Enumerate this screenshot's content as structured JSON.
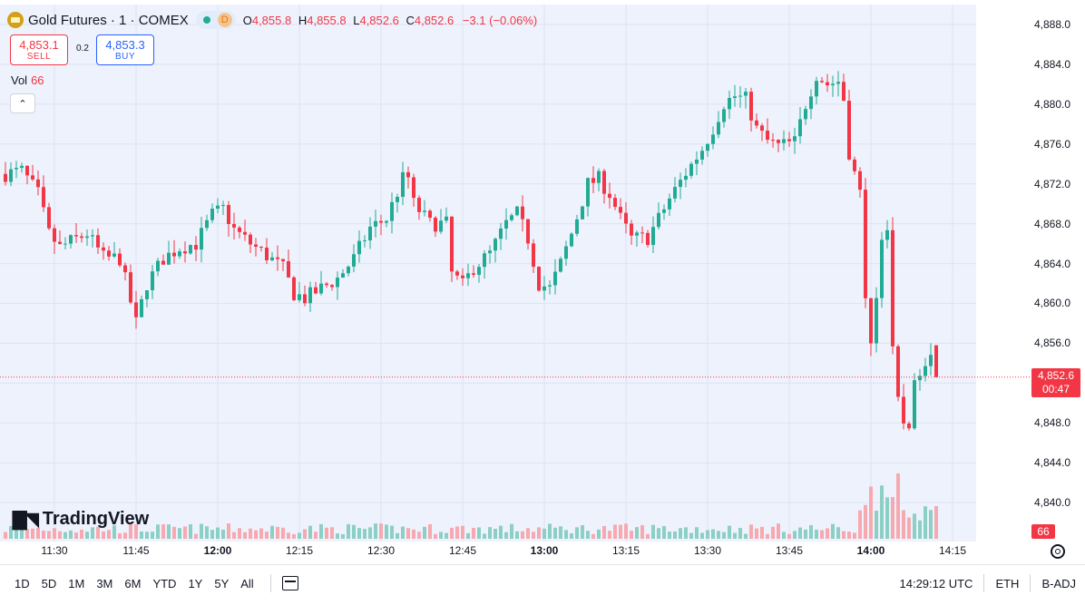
{
  "header": {
    "title": "Gold Futures · 1 · COMEX",
    "session_badge": "D",
    "ohlc": {
      "o_label": "O",
      "o": "4,855.8",
      "h_label": "H",
      "h": "4,855.8",
      "l_label": "L",
      "l": "4,852.6",
      "c_label": "C",
      "c": "4,852.6",
      "change": "−3.1 (−0.06%)"
    }
  },
  "trade": {
    "sell_price": "4,853.1",
    "sell_label": "SELL",
    "spread": "0.2",
    "buy_price": "4,853.3",
    "buy_label": "BUY"
  },
  "volume_legend": {
    "label": "Vol",
    "value": "66"
  },
  "watermark": "TradingView",
  "price_tag": {
    "price": "4,852.6",
    "countdown": "00:47"
  },
  "volume_tag": "66",
  "colors": {
    "up": "#22ab94",
    "down": "#f23645",
    "up_vol": "#8ccfc4",
    "down_vol": "#f7a9b0",
    "plot_bg": "#eef2fd"
  },
  "bottom_bar": {
    "ranges": [
      "1D",
      "5D",
      "1M",
      "3M",
      "6M",
      "YTD",
      "1Y",
      "5Y",
      "All"
    ],
    "clock": "14:29:12 UTC",
    "session": "ETH",
    "adjust": "B-ADJ"
  },
  "chart_data": {
    "type": "candlestick",
    "instrument": "Gold Futures · 1 · COMEX",
    "y_ticks": [
      "4,888.0",
      "4,884.0",
      "4,880.0",
      "4,876.0",
      "4,872.0",
      "4,868.0",
      "4,864.0",
      "4,860.0",
      "4,856.0",
      "4,848.0",
      "4,844.0",
      "4,840.0"
    ],
    "y_tick_values": [
      4888,
      4884,
      4880,
      4876,
      4872,
      4868,
      4864,
      4860,
      4856,
      4848,
      4844,
      4840
    ],
    "ylim": [
      4836.1,
      4890.0
    ],
    "x_ticks": [
      {
        "label": "11:30",
        "minute": 690,
        "bold": false
      },
      {
        "label": "11:45",
        "minute": 705,
        "bold": false
      },
      {
        "label": "12:00",
        "minute": 720,
        "bold": true
      },
      {
        "label": "12:15",
        "minute": 735,
        "bold": false
      },
      {
        "label": "12:30",
        "minute": 750,
        "bold": false
      },
      {
        "label": "12:45",
        "minute": 765,
        "bold": false
      },
      {
        "label": "13:00",
        "minute": 780,
        "bold": true
      },
      {
        "label": "13:15",
        "minute": 795,
        "bold": false
      },
      {
        "label": "13:30",
        "minute": 810,
        "bold": false
      },
      {
        "label": "13:45",
        "minute": 825,
        "bold": false
      },
      {
        "label": "14:00",
        "minute": 840,
        "bold": true
      },
      {
        "label": "14:15",
        "minute": 855,
        "bold": false
      }
    ],
    "last_price": 4852.6,
    "grid": true,
    "series": [
      {
        "name": "price",
        "key_points": [
          [
            681,
            4873
          ],
          [
            684,
            4873.3
          ],
          [
            687,
            4871
          ],
          [
            689,
            4867
          ],
          [
            691,
            4865.6
          ],
          [
            693,
            4866.2
          ],
          [
            696,
            4867
          ],
          [
            699,
            4864.6
          ],
          [
            702,
            4864.5
          ],
          [
            705,
            4858
          ],
          [
            707,
            4862
          ],
          [
            710,
            4864.5
          ],
          [
            713,
            4865.6
          ],
          [
            716,
            4866
          ],
          [
            719,
            4868.9
          ],
          [
            721,
            4869.5
          ],
          [
            723,
            4867.4
          ],
          [
            726,
            4866
          ],
          [
            729,
            4864.8
          ],
          [
            732,
            4863.5
          ],
          [
            734,
            4861
          ],
          [
            736,
            4860.5
          ],
          [
            739,
            4861.5
          ],
          [
            742,
            4862.5
          ],
          [
            745,
            4864.5
          ],
          [
            748,
            4867.6
          ],
          [
            751,
            4868.5
          ],
          [
            754,
            4872.5
          ],
          [
            755,
            4872.6
          ],
          [
            756,
            4870
          ],
          [
            759,
            4868
          ],
          [
            762,
            4868
          ],
          [
            763,
            4863
          ],
          [
            765,
            4861.8
          ],
          [
            767,
            4863.6
          ],
          [
            770,
            4865
          ],
          [
            773,
            4868
          ],
          [
            775,
            4869
          ],
          [
            777,
            4866.5
          ],
          [
            779,
            4862
          ],
          [
            781,
            4861.5
          ],
          [
            783,
            4864
          ],
          [
            785,
            4867
          ],
          [
            788,
            4872
          ],
          [
            790,
            4872.5
          ],
          [
            792,
            4871
          ],
          [
            794,
            4868.5
          ],
          [
            796,
            4866.5
          ],
          [
            799,
            4866.6
          ],
          [
            801,
            4868.5
          ],
          [
            803,
            4870.5
          ],
          [
            806,
            4873.1
          ],
          [
            809,
            4875.5
          ],
          [
            811,
            4877.6
          ],
          [
            813,
            4880.1
          ],
          [
            815,
            4880.8
          ],
          [
            817,
            4880.5
          ],
          [
            819,
            4877.5
          ],
          [
            821,
            4876.3
          ],
          [
            823,
            4875.8
          ],
          [
            826,
            4876.2
          ],
          [
            828,
            4880
          ],
          [
            830,
            4883
          ],
          [
            832,
            4882
          ],
          [
            834,
            4882.3
          ],
          [
            835,
            4880.5
          ],
          [
            836,
            4875.2
          ],
          [
            837,
            4873
          ],
          [
            838,
            4871
          ],
          [
            839,
            4860
          ],
          [
            840,
            4856.5
          ],
          [
            841,
            4860.5
          ],
          [
            842,
            4867
          ],
          [
            843,
            4867.5
          ],
          [
            844,
            4855
          ],
          [
            845,
            4850
          ],
          [
            846,
            4848
          ],
          [
            847,
            4848.1
          ],
          [
            848,
            4851.5
          ],
          [
            849,
            4853.5
          ],
          [
            850,
            4854.4
          ],
          [
            851,
            4855.6
          ],
          [
            852,
            4852.6
          ]
        ]
      }
    ],
    "volume_series": {
      "name": "Vol",
      "note": "per-bar volume, last bar 66"
    }
  }
}
